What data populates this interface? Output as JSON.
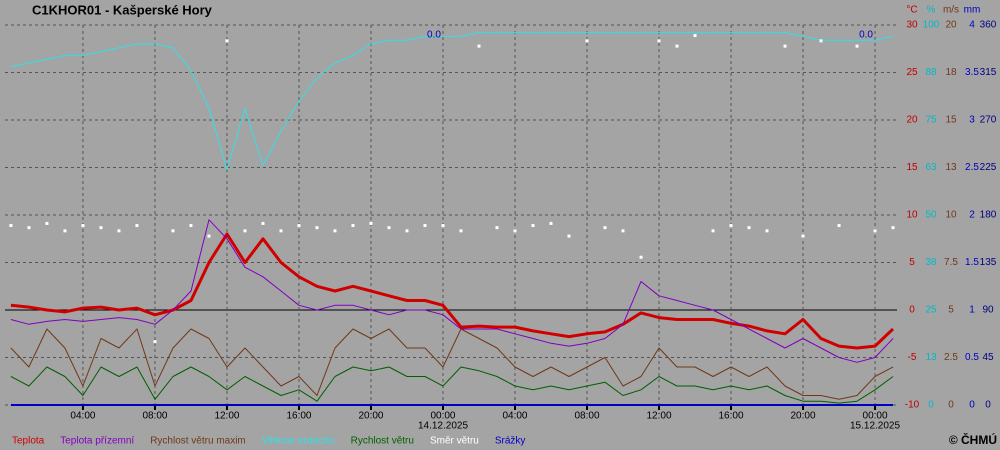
{
  "chart_data": {
    "type": "line",
    "title": "C1KHOR01 - Kašperské Hory",
    "copyright": "© ČHMÚ",
    "grid": true,
    "x": [
      0,
      1,
      2,
      3,
      4,
      5,
      6,
      7,
      8,
      9,
      10,
      11,
      12,
      13,
      14,
      15,
      16,
      17,
      18,
      19,
      20,
      21,
      22,
      23,
      24,
      25,
      26,
      27,
      28,
      29,
      30,
      31,
      32,
      33,
      34,
      35,
      36,
      37,
      38,
      39,
      40,
      41,
      42,
      43,
      44,
      45,
      46,
      47,
      48,
      49
    ],
    "xlim": [
      -0.33,
      49.22
    ],
    "xticks": [
      {
        "value": 4,
        "label": "04:00"
      },
      {
        "value": 8,
        "label": "08:00"
      },
      {
        "value": 12,
        "label": "12:00"
      },
      {
        "value": 16,
        "label": "16:00"
      },
      {
        "value": 20,
        "label": "20:00"
      },
      {
        "value": 24,
        "label": "00:00"
      },
      {
        "value": 28,
        "label": "04:00"
      },
      {
        "value": 32,
        "label": "08:00"
      },
      {
        "value": 36,
        "label": "12:00"
      },
      {
        "value": 40,
        "label": "16:00"
      },
      {
        "value": 44,
        "label": "20:00"
      },
      {
        "value": 48,
        "label": "00:00"
      }
    ],
    "date_labels": [
      {
        "value": 24,
        "label": "14.12.2025"
      },
      {
        "value": 48,
        "label": "15.12.2025"
      }
    ],
    "annotations": [
      {
        "x": 23.5,
        "text": "0.0",
        "color": "#0000c0"
      },
      {
        "x": 47.5,
        "text": "0.0",
        "color": "#0000c0"
      }
    ],
    "axes": {
      "temp": {
        "unit": "°C",
        "color": "#c00000",
        "lim": [
          -10,
          30
        ],
        "ticks": [
          -10,
          -5,
          0,
          5,
          10,
          15,
          20,
          25,
          30
        ]
      },
      "hum": {
        "unit": "%",
        "color": "#00b8c8",
        "lim": [
          0,
          100
        ],
        "ticks": [
          0,
          {
            "value": 12.5,
            "label": "13"
          },
          25,
          {
            "value": 37.5,
            "label": "38"
          },
          50,
          {
            "value": 62.5,
            "label": "63"
          },
          75,
          {
            "value": 87.5,
            "label": "88"
          },
          100
        ]
      },
      "wind": {
        "unit": "m/s",
        "color": "#703818",
        "lim": [
          0,
          20
        ],
        "ticks": [
          0,
          2.5,
          5,
          7.5,
          10,
          {
            "value": 12.5,
            "label": "13"
          },
          15,
          {
            "value": 17.5,
            "label": "18"
          },
          20
        ]
      },
      "mm": {
        "unit": "mm",
        "color": "#0000c0",
        "lim": [
          0,
          4
        ],
        "ticks": [
          0,
          0.5,
          1,
          1.5,
          2,
          2.5,
          3,
          3.5,
          4
        ]
      },
      "dir": {
        "color": "#000080",
        "lim": [
          0,
          360
        ],
        "ticks": [
          0,
          45,
          90,
          135,
          180,
          225,
          270,
          315,
          360
        ]
      }
    },
    "axis_order": [
      "temp",
      "hum",
      "wind",
      "mm",
      "dir"
    ],
    "series": [
      {
        "name": "Teplota",
        "color": "#d00000",
        "axis": "temp",
        "width": 3,
        "values": [
          0.5,
          0.3,
          0,
          -0.2,
          0.2,
          0.3,
          0,
          0.2,
          -0.5,
          0,
          1,
          5,
          8,
          5,
          7.5,
          5,
          3.5,
          2.5,
          2,
          2.5,
          2,
          1.5,
          1,
          1,
          0.5,
          -1.8,
          -1.7,
          -1.8,
          -1.8,
          -2.2,
          -2.5,
          -2.8,
          -2.5,
          -2.3,
          -1.5,
          -0.3,
          -0.8,
          -1,
          -1,
          -1,
          -1.4,
          -1.7,
          -2.2,
          -2.5,
          -1,
          -3,
          -3.8,
          -4,
          -3.8,
          -2
        ]
      },
      {
        "name": "Teplota přízemní",
        "color": "#8000c0",
        "axis": "temp",
        "width": 1,
        "values": [
          -1,
          -1.5,
          -1.2,
          -1,
          -1.2,
          -1,
          -0.8,
          -1,
          -1.5,
          0,
          2,
          9.5,
          7.5,
          4.5,
          3.5,
          2,
          0.5,
          0,
          0.5,
          0.5,
          0,
          -0.5,
          0,
          0,
          -0.5,
          -2,
          -2,
          -2,
          -2.5,
          -3,
          -3.5,
          -3.8,
          -3.5,
          -3,
          -1.5,
          3,
          1.5,
          1,
          0.5,
          0,
          -1,
          -2,
          -3,
          -4,
          -3,
          -4,
          -5,
          -5.5,
          -5,
          -3
        ]
      },
      {
        "name": "Rychlost větru maxim",
        "color": "#703818",
        "axis": "wind",
        "width": 1,
        "values": [
          3,
          2,
          4,
          3,
          1,
          3.5,
          3,
          4,
          1,
          3,
          4,
          3.5,
          2,
          3,
          2,
          1,
          1.5,
          0.5,
          3,
          4,
          3.5,
          4,
          3,
          3,
          2,
          4,
          3.5,
          3,
          2,
          1.5,
          2,
          1.5,
          2,
          2.5,
          1,
          1.5,
          3,
          2,
          2,
          1.5,
          2,
          1.5,
          2,
          1,
          0.5,
          0.5,
          0.3,
          0.5,
          1.5,
          2
        ]
      },
      {
        "name": "Vlhkost vzduchu",
        "color": "#30e0e8",
        "axis": "hum",
        "width": 1,
        "values": [
          89,
          90,
          91,
          92,
          92,
          93,
          94,
          95,
          95,
          94,
          88,
          78,
          62,
          78,
          63,
          72,
          80,
          86,
          90,
          92,
          95,
          96,
          96,
          97,
          97,
          97,
          98,
          98,
          98,
          98,
          98,
          98,
          98,
          98,
          98,
          98,
          98,
          98,
          98,
          98,
          98,
          98,
          98,
          98,
          97,
          96,
          96,
          96,
          96,
          97
        ]
      },
      {
        "name": "Rychlost větru",
        "color": "#006000",
        "axis": "wind",
        "width": 1,
        "values": [
          1.5,
          1,
          2,
          1.5,
          0.5,
          2,
          1.5,
          2,
          0.3,
          1.5,
          2,
          1.5,
          0.8,
          1.5,
          1,
          0.5,
          0.8,
          0.2,
          1.5,
          2,
          1.8,
          2,
          1.5,
          1.5,
          1,
          2,
          1.8,
          1.5,
          1,
          0.8,
          1,
          0.8,
          1,
          1.2,
          0.5,
          0.8,
          1.5,
          1,
          1,
          0.8,
          1,
          0.8,
          1,
          0.5,
          0.2,
          0.2,
          0.1,
          0.2,
          0.8,
          1.5
        ]
      },
      {
        "name": "Směr větru",
        "color": "#ffffff",
        "axis": "dir",
        "marker": "dots",
        "values": [
          170,
          168,
          172,
          165,
          170,
          168,
          165,
          170,
          60,
          165,
          170,
          160,
          345,
          165,
          172,
          165,
          170,
          168,
          165,
          170,
          172,
          168,
          165,
          170,
          170,
          165,
          340,
          168,
          165,
          170,
          172,
          160,
          345,
          168,
          165,
          140,
          345,
          340,
          350,
          165,
          170,
          168,
          165,
          340,
          160,
          345,
          170,
          340,
          165,
          168
        ]
      },
      {
        "name": "Srážky",
        "color": "#0000c0",
        "axis": "mm",
        "width": 2,
        "values": [
          0,
          0,
          0,
          0,
          0,
          0,
          0,
          0,
          0,
          0,
          0,
          0,
          0,
          0,
          0,
          0,
          0,
          0,
          0,
          0,
          0,
          0,
          0,
          0,
          0,
          0,
          0,
          0,
          0,
          0,
          0,
          0,
          0,
          0,
          0,
          0,
          0,
          0,
          0,
          0,
          0,
          0,
          0,
          0,
          0,
          0,
          0,
          0,
          0,
          0
        ]
      }
    ]
  }
}
